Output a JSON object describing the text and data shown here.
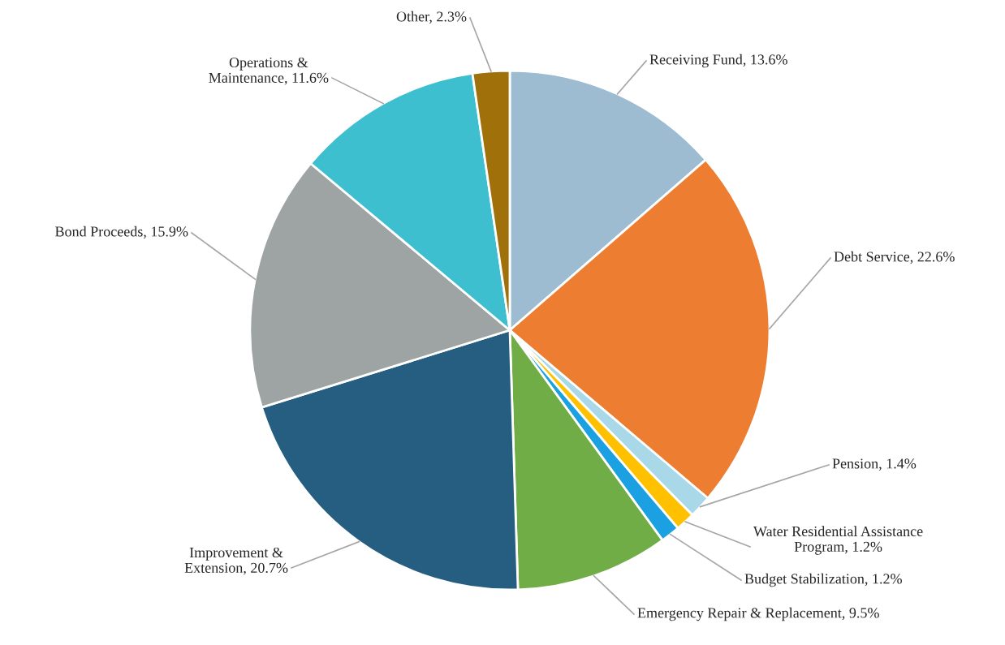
{
  "chart_data": {
    "type": "pie",
    "categories": [
      "Receiving Fund, 13.6%",
      "Debt Service, 22.6%",
      "Pension, 1.4%",
      "Water Residential Assistance\nProgram, 1.2%",
      "Budget Stabilization, 1.2%",
      "Emergency Repair & Replacement, 9.5%",
      "Improvement &\nExtension, 20.7%",
      "Bond Proceeds, 15.9%",
      "Operations &\nMaintenance, 11.6%",
      "Other, 2.3%"
    ],
    "values": [
      13.6,
      22.6,
      1.4,
      1.2,
      1.2,
      9.5,
      20.7,
      15.9,
      11.6,
      2.3
    ],
    "colors": [
      "#9dbcd2",
      "#ed7d31",
      "#a9d8e8",
      "#ffc000",
      "#1ba1e2",
      "#70ad47",
      "#255e80",
      "#9ea3a3",
      "#3dbfcf",
      "#a0700a"
    ]
  }
}
